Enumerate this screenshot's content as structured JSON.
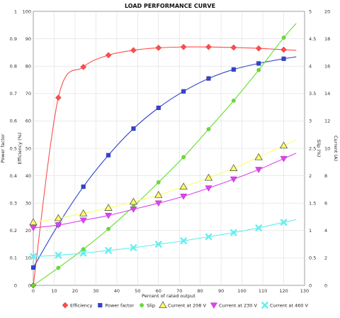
{
  "chart_data": {
    "type": "line",
    "title": "LOAD PERFORMANCE CURVE",
    "xlabel": "Percent of rated output",
    "xlim": [
      0,
      130
    ],
    "xticks": [
      "0",
      "10",
      "20",
      "30",
      "40",
      "50",
      "60",
      "70",
      "80",
      "90",
      "100",
      "110",
      "120",
      "130"
    ],
    "axes": [
      {
        "id": "pf",
        "label": "Power factor",
        "side": "left",
        "range": [
          0,
          1
        ],
        "ticks": [
          "0",
          "0.1",
          "0.2",
          "0.3",
          "0.4",
          "0.5",
          "0.6",
          "0.7",
          "0.8",
          "0.9",
          "1"
        ]
      },
      {
        "id": "eff",
        "label": "Efficiency (%)",
        "side": "left",
        "range": [
          0,
          100
        ],
        "ticks": [
          "0",
          "10",
          "20",
          "30",
          "40",
          "50",
          "60",
          "70",
          "80",
          "90",
          "100"
        ]
      },
      {
        "id": "slip",
        "label": "Slip (%)",
        "side": "right",
        "range": [
          0,
          5
        ],
        "ticks": [
          "0",
          "0.5",
          "1",
          "1.5",
          "2",
          "2.5",
          "3",
          "3.5",
          "4",
          "4.5",
          "5"
        ]
      },
      {
        "id": "cur",
        "label": "Current (A)",
        "side": "right",
        "range": [
          0,
          20
        ],
        "ticks": [
          "0",
          "2",
          "4",
          "6",
          "8",
          "10",
          "12",
          "14",
          "16",
          "18",
          "20"
        ]
      }
    ],
    "grid": true,
    "legend_position": "bottom",
    "series": [
      {
        "name": "Efficiency",
        "axis": "eff",
        "color": "#ff4d4d",
        "marker": "diamond",
        "x": [
          0,
          12,
          24,
          36,
          48,
          60,
          72,
          84,
          96,
          108,
          120
        ],
        "y": [
          0,
          68.5,
          79.7,
          84,
          85.8,
          86.7,
          87,
          87,
          86.8,
          86.5,
          86
        ]
      },
      {
        "name": "Power factor",
        "axis": "pf",
        "color": "#3344cc",
        "marker": "square",
        "x": [
          0,
          12,
          24,
          36,
          48,
          60,
          72,
          84,
          96,
          108,
          120
        ],
        "y": [
          0.065,
          0.222,
          0.36,
          0.475,
          0.572,
          0.648,
          0.708,
          0.755,
          0.788,
          0.81,
          0.827
        ]
      },
      {
        "name": "Slip",
        "axis": "slip",
        "color": "#66dd33",
        "marker": "circle",
        "x": [
          0,
          12,
          24,
          36,
          48,
          60,
          72,
          84,
          96,
          108,
          120
        ],
        "y": [
          0,
          0.32,
          0.66,
          1.03,
          1.44,
          1.88,
          2.34,
          2.85,
          3.37,
          3.93,
          4.52
        ]
      },
      {
        "name": "Current at 208 V",
        "axis": "cur",
        "color": "#ffff66",
        "marker": "triangle",
        "x": [
          0,
          12,
          24,
          36,
          48,
          60,
          72,
          84,
          96,
          108,
          120
        ],
        "y": [
          4.6,
          4.9,
          5.25,
          5.65,
          6.1,
          6.6,
          7.2,
          7.85,
          8.55,
          9.35,
          10.2
        ]
      },
      {
        "name": "Current at 230 V",
        "axis": "cur",
        "color": "#dd44ee",
        "marker": "triangle-down",
        "x": [
          0,
          12,
          24,
          36,
          48,
          60,
          72,
          84,
          96,
          108,
          120
        ],
        "y": [
          4.2,
          4.4,
          4.75,
          5.1,
          5.55,
          6.0,
          6.5,
          7.1,
          7.75,
          8.45,
          9.25
        ]
      },
      {
        "name": "Current at 460 V",
        "axis": "cur",
        "color": "#66eeee",
        "marker": "x",
        "x": [
          0,
          12,
          24,
          36,
          48,
          60,
          72,
          84,
          96,
          108,
          120
        ],
        "y": [
          2.1,
          2.2,
          2.35,
          2.55,
          2.75,
          3.0,
          3.25,
          3.55,
          3.85,
          4.2,
          4.6
        ]
      }
    ]
  }
}
